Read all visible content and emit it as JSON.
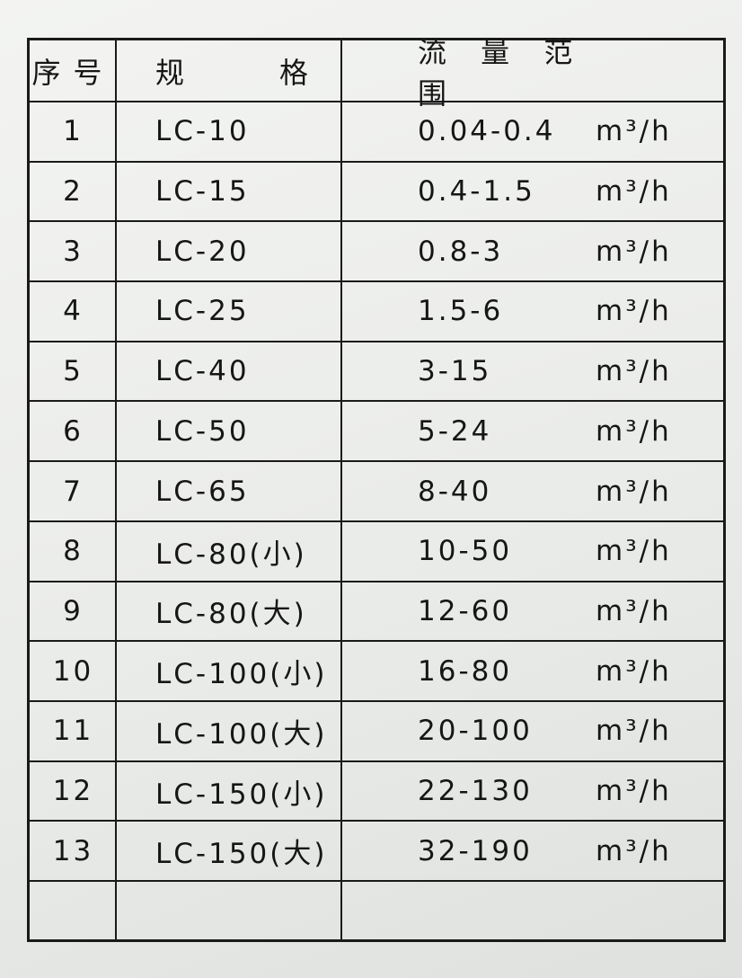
{
  "table": {
    "headers": [
      "序号",
      "规　　格",
      "流 量 范 围"
    ],
    "rows": [
      {
        "no": "1",
        "model": "LC-10",
        "range": "0.04-0.4",
        "unit": "m³/h"
      },
      {
        "no": "2",
        "model": "LC-15",
        "range": "0.4-1.5",
        "unit": "m³/h"
      },
      {
        "no": "3",
        "model": "LC-20",
        "range": "0.8-3",
        "unit": "m³/h"
      },
      {
        "no": "4",
        "model": "LC-25",
        "range": "1.5-6",
        "unit": "m³/h"
      },
      {
        "no": "5",
        "model": "LC-40",
        "range": "3-15",
        "unit": "m³/h"
      },
      {
        "no": "6",
        "model": "LC-50",
        "range": "5-24",
        "unit": "m³/h"
      },
      {
        "no": "7",
        "model": "LC-65",
        "range": "8-40",
        "unit": "m³/h"
      },
      {
        "no": "8",
        "model": "LC-80(小)",
        "range": "10-50",
        "unit": "m³/h"
      },
      {
        "no": "9",
        "model": "LC-80(大)",
        "range": "12-60",
        "unit": "m³/h"
      },
      {
        "no": "10",
        "model": "LC-100(小)",
        "range": "16-80",
        "unit": "m³/h"
      },
      {
        "no": "11",
        "model": "LC-100(大)",
        "range": "20-100",
        "unit": "m³/h"
      },
      {
        "no": "12",
        "model": "LC-150(小)",
        "range": "22-130",
        "unit": "m³/h"
      },
      {
        "no": "13",
        "model": "LC-150(大)",
        "range": "32-190",
        "unit": "m³/h"
      },
      {
        "no": "",
        "model": "",
        "range": "",
        "unit": ""
      }
    ]
  }
}
